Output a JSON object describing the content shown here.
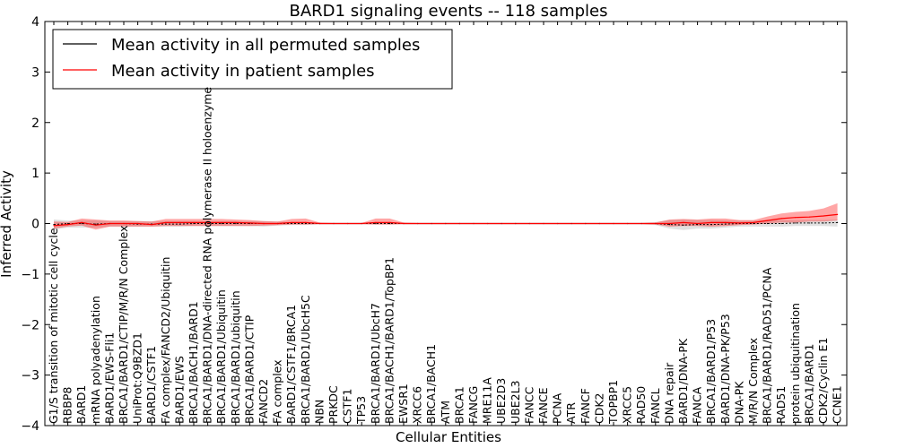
{
  "chart_data": {
    "type": "line",
    "title": "BARD1 signaling events -- 118 samples",
    "xlabel": "Cellular Entities",
    "ylabel": "Inferred Activity",
    "ylim": [
      -4,
      4
    ],
    "yticks": [
      "4",
      "3",
      "2",
      "1",
      "0",
      "−1",
      "−2",
      "−3",
      "−4"
    ],
    "legend": {
      "position": "top-left",
      "entries": [
        {
          "label": "Mean activity in all permuted samples",
          "color": "#000000"
        },
        {
          "label": "Mean activity in patient samples",
          "color": "#ff0000"
        }
      ]
    },
    "categories": [
      "G1/S transition of mitotic cell cycle",
      "RBBP8",
      "BARD1",
      "mRNA polyadenylation",
      "BARD1/EWS-Fli1",
      "BRCA1/BARD1/CTIP/M/R/N Complex",
      "UniProt:Q9BZD1",
      "BARD1/CSTF1",
      "FA complex/FANCD2/Ubiquitin",
      "BARD1/EWS",
      "BRCA1/BACH1/BARD1",
      "BRCA1/BARD1/DNA-directed RNA polymerase II holoenzyme",
      "BRCA1/BARD1/Ubiquitin",
      "BRCA1/BARD1/ubiquitin",
      "BRCA1/BARD1/CTIP",
      "FANCD2",
      "FA complex",
      "BARD1/CSTF1/BRCA1",
      "BRCA1/BARD1/UbcH5C",
      "NBN",
      "PRKDC",
      "CSTF1",
      "TP53",
      "BRCA1/BARD1/UbcH7",
      "BRCA1/BACH1/BARD1/TopBP1",
      "EWSR1",
      "XRCC6",
      "BRCA1/BACH1",
      "ATM",
      "BRCA1",
      "FANCG",
      "MRE11A",
      "UBE2D3",
      "UBE2L3",
      "FANCC",
      "FANCE",
      "PCNA",
      "ATR",
      "FANCF",
      "CDK2",
      "TOPBP1",
      "XRCC5",
      "RAD50",
      "FANCL",
      "DNA repair",
      "BARD1/DNA-PK",
      "FANCA",
      "BRCA1/BARD1/P53",
      "BARD1/DNA-PK/P53",
      "DNA-PK",
      "M/R/N Complex",
      "BRCA1/BARD1/RAD51/PCNA",
      "RAD51",
      "protein ubiquitination",
      "BRCA1/BARD1",
      "CDK2/Cyclin E1",
      "CCNE1"
    ],
    "series": [
      {
        "name": "Mean activity in all permuted samples",
        "color": "#000000",
        "values": [
          -0.02,
          0.0,
          0.0,
          -0.01,
          0.0,
          0.0,
          -0.01,
          -0.01,
          -0.01,
          -0.01,
          0.0,
          0.0,
          0.0,
          0.0,
          0.0,
          0.0,
          0.0,
          0.0,
          0.0,
          0.0,
          0.0,
          0.0,
          0.0,
          0.0,
          0.0,
          0.0,
          0.0,
          0.0,
          0.0,
          0.0,
          0.0,
          0.0,
          0.0,
          0.0,
          0.0,
          0.0,
          0.0,
          0.0,
          0.0,
          0.0,
          0.0,
          0.0,
          0.0,
          0.0,
          -0.02,
          -0.03,
          -0.02,
          -0.02,
          -0.01,
          0.0,
          0.0,
          0.0,
          0.0,
          0.01,
          0.01,
          0.01,
          0.02
        ],
        "band_lower": [
          -0.12,
          -0.08,
          -0.08,
          -0.08,
          -0.06,
          -0.06,
          -0.06,
          -0.06,
          -0.06,
          -0.06,
          -0.05,
          -0.05,
          -0.05,
          -0.05,
          -0.05,
          -0.06,
          -0.04,
          -0.03,
          -0.03,
          -0.02,
          -0.02,
          -0.02,
          -0.02,
          -0.02,
          -0.02,
          -0.02,
          -0.02,
          -0.02,
          -0.02,
          -0.02,
          -0.02,
          -0.02,
          -0.02,
          -0.02,
          -0.02,
          -0.02,
          -0.02,
          -0.02,
          -0.02,
          -0.02,
          -0.02,
          -0.02,
          -0.02,
          -0.03,
          -0.1,
          -0.13,
          -0.1,
          -0.1,
          -0.08,
          -0.06,
          -0.06,
          -0.06,
          -0.06,
          -0.05,
          -0.05,
          -0.05,
          -0.06
        ],
        "band_upper": [
          0.08,
          0.06,
          0.06,
          0.06,
          0.05,
          0.05,
          0.05,
          0.05,
          0.05,
          0.05,
          0.05,
          0.05,
          0.05,
          0.05,
          0.05,
          0.05,
          0.04,
          0.03,
          0.03,
          0.02,
          0.02,
          0.02,
          0.02,
          0.02,
          0.02,
          0.02,
          0.02,
          0.02,
          0.02,
          0.02,
          0.02,
          0.02,
          0.02,
          0.02,
          0.02,
          0.02,
          0.02,
          0.02,
          0.02,
          0.02,
          0.02,
          0.02,
          0.02,
          0.03,
          0.07,
          0.08,
          0.07,
          0.07,
          0.06,
          0.06,
          0.06,
          0.07,
          0.07,
          0.07,
          0.07,
          0.07,
          0.08
        ]
      },
      {
        "name": "Mean activity in patient samples",
        "color": "#ff0000",
        "values": [
          -0.04,
          -0.02,
          0.02,
          -0.03,
          0.0,
          0.0,
          0.0,
          -0.02,
          0.02,
          0.02,
          0.02,
          0.02,
          0.02,
          0.02,
          0.01,
          0.0,
          0.0,
          0.02,
          0.02,
          0.0,
          0.0,
          0.0,
          0.0,
          0.02,
          0.02,
          0.0,
          0.0,
          0.0,
          0.0,
          0.0,
          0.0,
          0.0,
          0.0,
          0.0,
          0.0,
          0.0,
          0.0,
          0.0,
          0.0,
          0.0,
          0.0,
          0.0,
          0.0,
          0.0,
          0.0,
          0.02,
          0.0,
          0.02,
          0.02,
          0.01,
          0.02,
          0.06,
          0.1,
          0.12,
          0.13,
          0.15,
          0.18
        ],
        "band_lower": [
          -0.1,
          -0.06,
          -0.04,
          -0.12,
          -0.06,
          -0.06,
          -0.06,
          -0.06,
          -0.05,
          -0.05,
          -0.05,
          -0.05,
          -0.05,
          -0.05,
          -0.05,
          -0.04,
          -0.03,
          -0.02,
          -0.02,
          -0.01,
          -0.01,
          -0.01,
          -0.01,
          -0.02,
          -0.02,
          -0.01,
          -0.01,
          -0.01,
          -0.01,
          -0.01,
          -0.01,
          -0.01,
          -0.01,
          -0.01,
          -0.01,
          -0.01,
          -0.01,
          -0.01,
          -0.01,
          -0.01,
          -0.01,
          -0.01,
          -0.01,
          -0.02,
          -0.06,
          -0.05,
          -0.05,
          -0.06,
          -0.05,
          -0.03,
          -0.02,
          0.0,
          0.02,
          0.02,
          0.04,
          0.04,
          0.06
        ],
        "band_upper": [
          0.04,
          0.03,
          0.1,
          0.08,
          0.06,
          0.06,
          0.05,
          0.04,
          0.09,
          0.09,
          0.09,
          0.09,
          0.09,
          0.08,
          0.07,
          0.05,
          0.04,
          0.09,
          0.1,
          0.02,
          0.01,
          0.01,
          0.01,
          0.1,
          0.1,
          0.02,
          0.01,
          0.01,
          0.01,
          0.01,
          0.01,
          0.01,
          0.01,
          0.01,
          0.01,
          0.01,
          0.01,
          0.01,
          0.01,
          0.01,
          0.01,
          0.01,
          0.01,
          0.02,
          0.08,
          0.09,
          0.08,
          0.1,
          0.1,
          0.07,
          0.07,
          0.14,
          0.2,
          0.23,
          0.25,
          0.3,
          0.4
        ]
      }
    ]
  }
}
